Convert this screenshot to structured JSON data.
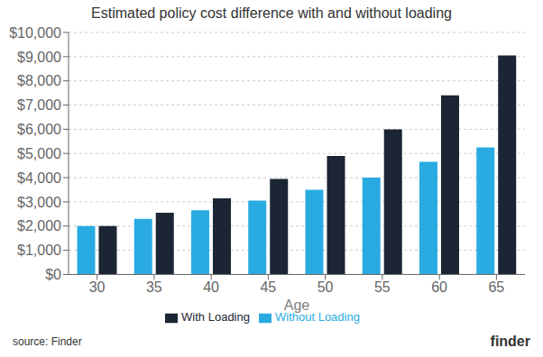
{
  "chart_data": {
    "type": "bar",
    "title": "Estimated policy cost difference with and without loading",
    "xlabel": "Age",
    "categories": [
      30,
      35,
      40,
      45,
      50,
      55,
      60,
      65
    ],
    "series": [
      {
        "name": "Without Loading",
        "color": "#29ABE2",
        "values": [
          2000,
          2300,
          2650,
          3050,
          3500,
          4000,
          4650,
          5250
        ]
      },
      {
        "name": "With Loading",
        "color": "#1B2533",
        "values": [
          2000,
          2550,
          3150,
          3950,
          4900,
          6000,
          7400,
          9050
        ]
      }
    ],
    "ylim": [
      0,
      10000
    ],
    "yticks": [
      {
        "value": 0,
        "label": "$0"
      },
      {
        "value": 1000,
        "label": "$1,000"
      },
      {
        "value": 2000,
        "label": "$2,000"
      },
      {
        "value": 3000,
        "label": "$3,000"
      },
      {
        "value": 4000,
        "label": "$4,000"
      },
      {
        "value": 5000,
        "label": "$5,000"
      },
      {
        "value": 6000,
        "label": "$6,000"
      },
      {
        "value": 7000,
        "label": "$7,000"
      },
      {
        "value": 8000,
        "label": "$8,000"
      },
      {
        "value": 9000,
        "label": "$9,000"
      },
      {
        "value": 10000,
        "label": "$10,000"
      }
    ],
    "grid": true,
    "legend": "bottom",
    "annotations": [
      "source: Finder",
      "finder"
    ]
  }
}
